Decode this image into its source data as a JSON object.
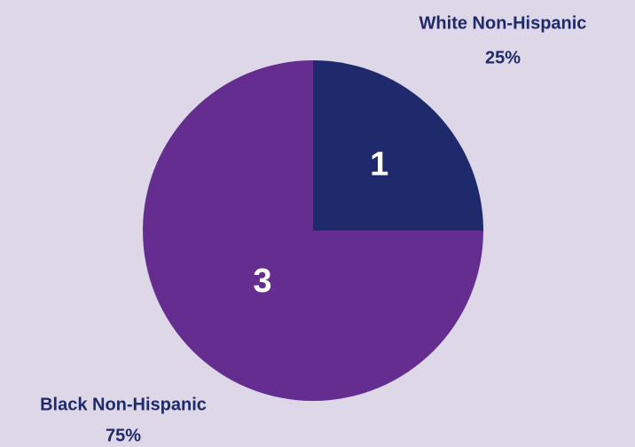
{
  "chart_data": {
    "type": "pie",
    "categories": [
      "White Non-Hispanic",
      "Black Non-Hispanic"
    ],
    "values": [
      1,
      3
    ],
    "percent_labels": [
      "25%",
      "75%"
    ],
    "colors": [
      "#1e2a6b",
      "#652d90"
    ]
  }
}
